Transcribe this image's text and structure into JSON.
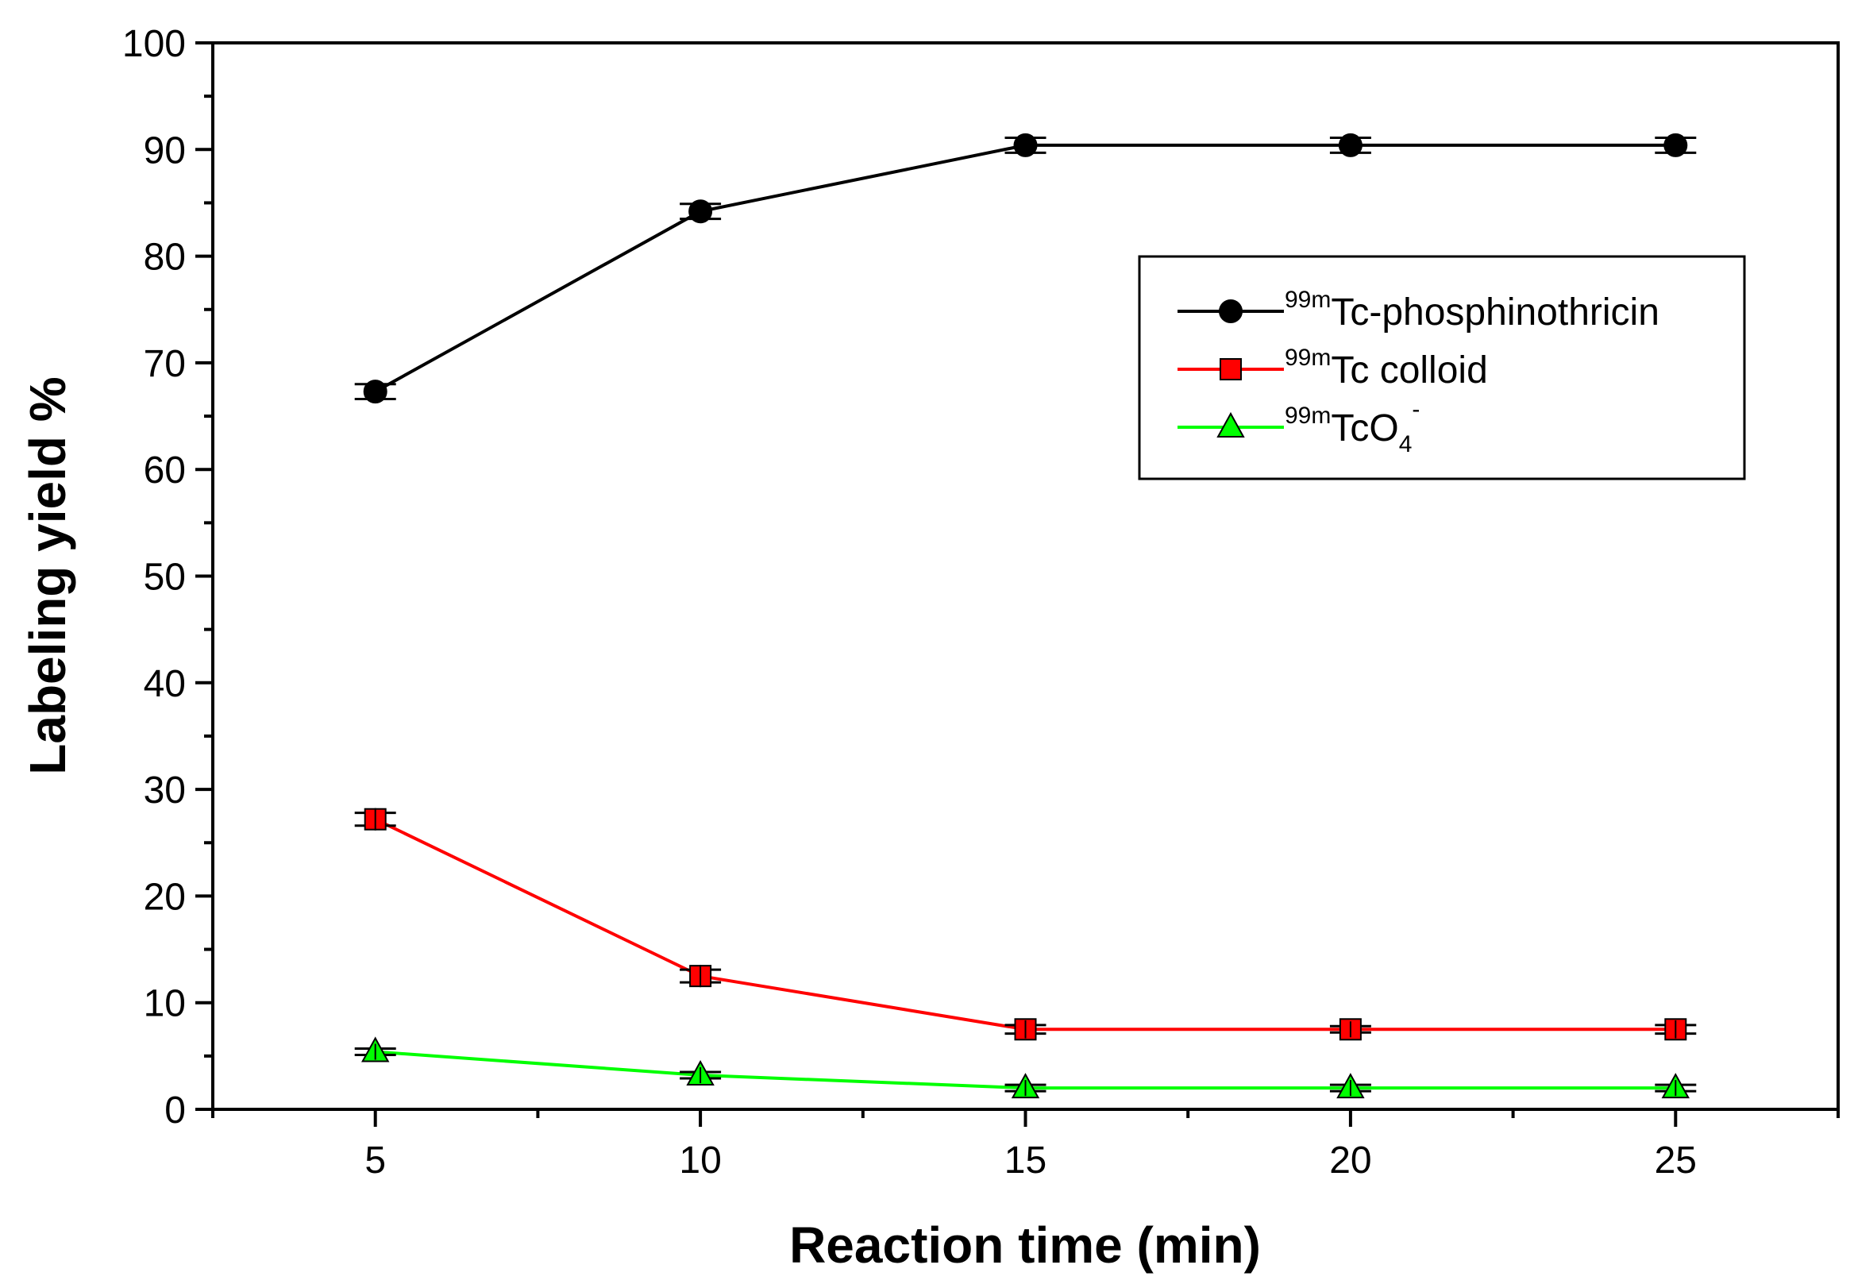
{
  "chart_data": {
    "type": "line",
    "title": "",
    "xlabel": "Reaction time (min)",
    "ylabel": "Labeling yield %",
    "xlim": [
      2.5,
      27.5
    ],
    "ylim": [
      0,
      100
    ],
    "x": [
      5,
      10,
      15,
      20,
      25
    ],
    "x_ticks": [
      5,
      10,
      15,
      20,
      25
    ],
    "y_ticks": [
      0,
      10,
      20,
      30,
      40,
      50,
      60,
      70,
      80,
      90,
      100
    ],
    "grid": false,
    "legend_position": "top-right",
    "series": [
      {
        "name": "99mTc-phosphinothricin",
        "label_sup": "99m",
        "label_main": "Tc-phosphinothricin",
        "label_sub": "",
        "label_sup2": "",
        "marker": "circle",
        "color": "#000000",
        "values": [
          67.3,
          84.2,
          90.4,
          90.4,
          90.4
        ],
        "errors": [
          0.7,
          0.7,
          0.7,
          0.7,
          0.7
        ]
      },
      {
        "name": "99mTc colloid",
        "label_sup": "99m",
        "label_main": "Tc colloid",
        "label_sub": "",
        "label_sup2": "",
        "marker": "square",
        "color": "#ff0000",
        "values": [
          27.2,
          12.5,
          7.5,
          7.5,
          7.5
        ],
        "errors": [
          0.6,
          0.6,
          0.4,
          0.3,
          0.4
        ]
      },
      {
        "name": "99mTcO4-",
        "label_sup": "99m",
        "label_main": "TcO",
        "label_sub": "4",
        "label_sup2": "-",
        "marker": "triangle",
        "color": "#00ff00",
        "values": [
          5.4,
          3.2,
          2.0,
          2.0,
          2.0
        ],
        "errors": [
          0.3,
          0.3,
          0.3,
          0.3,
          0.3
        ]
      }
    ]
  }
}
